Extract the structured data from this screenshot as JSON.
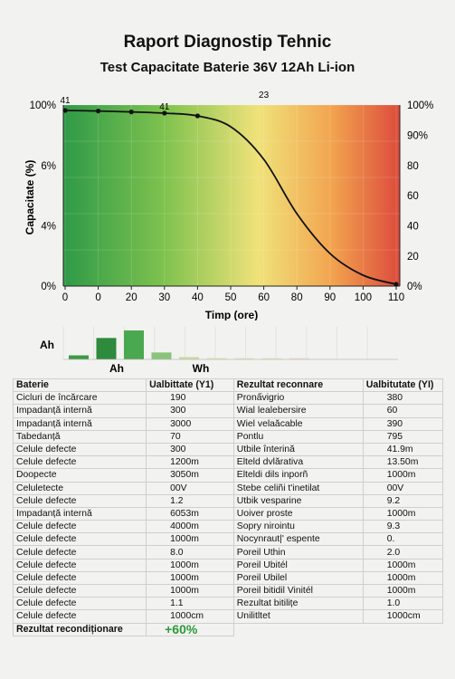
{
  "title": "Raport Diagnostip Tehnic",
  "subtitle": "Test Capacitate Baterie 36V 12Ah Li-ion",
  "chart_data": {
    "type": "line",
    "xlabel": "Timp (ore)",
    "ylabel": "Capacitate (%)",
    "x_tick_labels": [
      "0",
      "0",
      "20",
      "30",
      "40",
      "50",
      "60",
      "80",
      "90",
      "100",
      "110"
    ],
    "y_tick_labels_left": [
      "0%",
      "4%",
      "6%",
      "100%"
    ],
    "y_tick_labels_right": [
      "0%",
      "20",
      "40",
      "60",
      "80",
      "90%",
      "100%"
    ],
    "y_tick_positions_pct": [
      0,
      20,
      40,
      60,
      80,
      100
    ],
    "x_tick_count": 11,
    "ylim": [
      0,
      100
    ],
    "background": "gradient green-yellow-red",
    "gradient_colors": [
      "#2e9a48",
      "#7fc24e",
      "#f0e27a",
      "#f2a34f",
      "#dc4b3c"
    ],
    "series": [
      {
        "points": [
          [
            0,
            97
          ],
          [
            1,
            96.7
          ],
          [
            2,
            96.2
          ],
          [
            3,
            95.5
          ],
          [
            4,
            94
          ],
          [
            5,
            88
          ],
          [
            6,
            70
          ],
          [
            7,
            40
          ],
          [
            8,
            18
          ],
          [
            9,
            6
          ],
          [
            10,
            1
          ]
        ],
        "marked": [
          0,
          1,
          2,
          3,
          4,
          10
        ],
        "color": "#111111"
      }
    ],
    "annotations": [
      {
        "text": "41",
        "x": 0,
        "y": 100
      },
      {
        "text": "41",
        "x": 3,
        "y": 100
      },
      {
        "text": "23",
        "x": 6,
        "y": 100
      }
    ]
  },
  "mini_chart": {
    "label_left": "Ah",
    "label_ah": "Ah",
    "label_wh": "Wh",
    "bars": [
      {
        "value": 0.14,
        "color": "#3b9a45"
      },
      {
        "value": 0.74,
        "color": "#2e8a3c"
      },
      {
        "value": 1.0,
        "color": "#4aa84f"
      },
      {
        "value": 0.24,
        "color": "#8ac47a"
      },
      {
        "value": 0.08,
        "color": "#c7dba0"
      },
      {
        "value": 0.04,
        "color": "#dde4b0"
      },
      {
        "value": 0.03,
        "color": "#e4e4c0"
      },
      {
        "value": 0.03,
        "color": "#e8e0c4"
      },
      {
        "value": 0.02,
        "color": "#eadcd0"
      }
    ]
  },
  "table": {
    "headers": [
      "Baterie",
      "Ualbittate (Y1)",
      "Rezultat reconnare",
      "Ualbitutate (YI)"
    ],
    "rows": [
      [
        "Cicluri de încărcare",
        "190",
        "Pronấvigrio",
        "380"
      ],
      [
        "Impadanță internă",
        "300",
        "Wial lealebersire",
        "60"
      ],
      [
        "Impadanță internă",
        "3000",
        "Wiel velaăcable",
        "390"
      ],
      [
        "Tabedanță",
        "70",
        "Pontlu",
        "795"
      ],
      [
        "Celule defecte",
        "300",
        "Utbile înterină",
        "41.9m"
      ],
      [
        "Celule defecte",
        "1200m",
        "Elteld dvlărativa",
        "13.50m"
      ],
      [
        "Doopecte",
        "3050m",
        "Elteldi dils inporñ",
        "1000m"
      ],
      [
        "Celuletecte",
        "00V",
        "Stebe celiñi t'inetilat",
        "00V"
      ],
      [
        "Celule defecte",
        "1.2",
        "Utbik vesparine",
        "9.2"
      ],
      [
        "Impadanță internă",
        "6053m",
        "Uoiver proste",
        "1000m"
      ],
      [
        "Celule defecte",
        "4000m",
        "Sopry nirointu",
        "9.3"
      ],
      [
        "Celule defecte",
        "1000m",
        "Nocynraut|' espente",
        "0."
      ],
      [
        "Celule defecte",
        "8.0",
        "Poreil Uthin",
        "2.0"
      ],
      [
        "Celule defecte",
        "1000m",
        "Poreil Ubitél",
        "1000m"
      ],
      [
        "Celule defecte",
        "1000m",
        "Poreil Ubilel",
        "1000m"
      ],
      [
        "Celule defecte",
        "1000m",
        "Poreil bitidil Vinitél",
        "1000m"
      ],
      [
        "Celule defecte",
        "1.1",
        "Rezultat bitilițe",
        "1.0"
      ],
      [
        "Celule defecte",
        "1000cm",
        "Unilitltet",
        "1000cm"
      ]
    ],
    "result_label": "Rezultat recondiționare",
    "result_value": "+60%"
  }
}
